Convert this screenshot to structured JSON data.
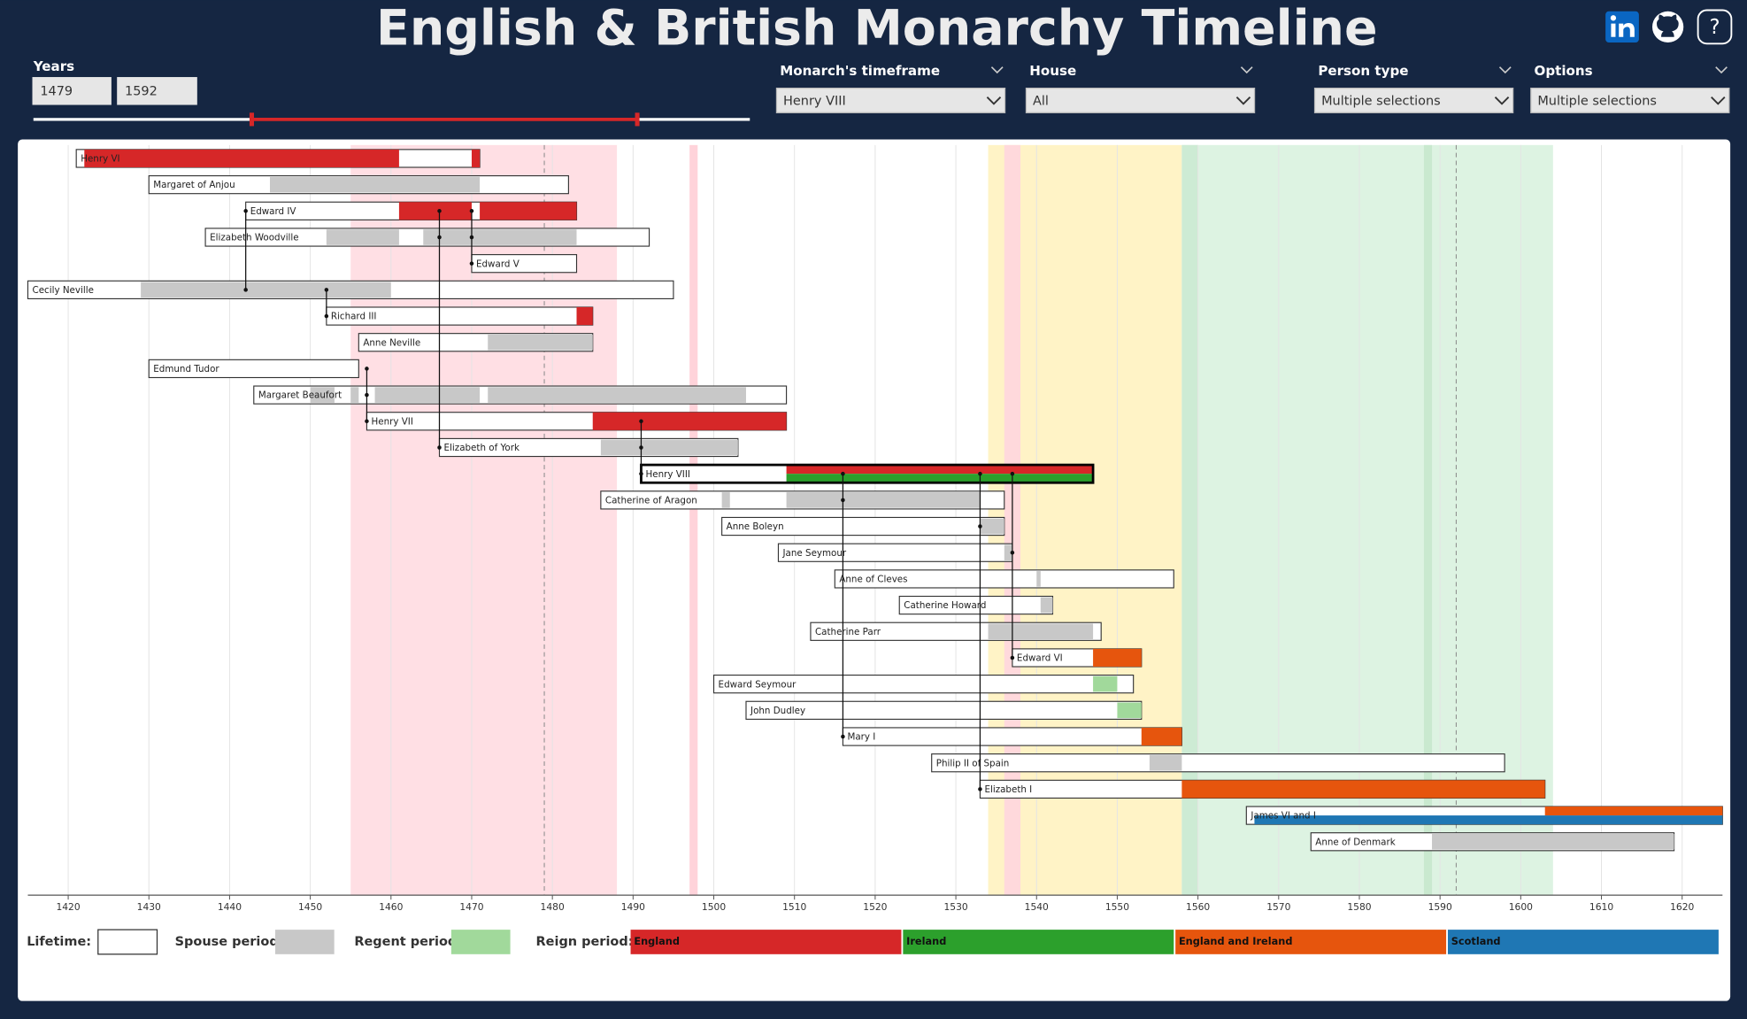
{
  "header": {
    "title": "English & British Monarchy Timeline",
    "help": "?"
  },
  "filters": {
    "years": {
      "label": "Years",
      "values": [
        1479,
        1592
      ]
    },
    "slicers": [
      {
        "label": "Monarch's timeframe",
        "value": "Henry VIII"
      },
      {
        "label": "House",
        "value": "All"
      },
      {
        "label": "Person type",
        "value": "Multiple selections"
      },
      {
        "label": "Options",
        "value": "Multiple selections"
      }
    ]
  },
  "chart_data": {
    "type": "timeline",
    "xlim": [
      1415,
      1625
    ],
    "xticks": [
      1420,
      1430,
      1440,
      1450,
      1460,
      1470,
      1480,
      1490,
      1500,
      1510,
      1520,
      1530,
      1540,
      1550,
      1560,
      1570,
      1580,
      1590,
      1600,
      1610,
      1620
    ],
    "grid": true,
    "bands": [
      {
        "start": 1455,
        "end": 1488,
        "color": "#ffdfe4"
      },
      {
        "start": 1497,
        "end": 1498,
        "color": "#ffd3da"
      },
      {
        "start": 1534,
        "end": 1558,
        "color": "#fff3c6"
      },
      {
        "start": 1536,
        "end": 1538,
        "color": "#ffd9dc"
      },
      {
        "start": 1558,
        "end": 1604,
        "color": "#ddf3e2"
      },
      {
        "start": 1558,
        "end": 1560,
        "color": "#cdebd4"
      },
      {
        "start": 1588,
        "end": 1589,
        "color": "#c9e9cf"
      }
    ],
    "people": [
      {
        "name": "Henry VI",
        "birth": 1421,
        "death": 1471,
        "spouse": [],
        "regent": [],
        "reign": [
          {
            "region": "England",
            "start": 1422,
            "end": 1461
          },
          {
            "region": "England",
            "start": 1470,
            "end": 1471
          }
        ],
        "parents": []
      },
      {
        "name": "Margaret of Anjou",
        "birth": 1430,
        "death": 1482,
        "spouse": [
          {
            "start": 1445,
            "end": 1471
          }
        ],
        "regent": [],
        "reign": [],
        "parents": []
      },
      {
        "name": "Edward IV",
        "birth": 1442,
        "death": 1483,
        "spouse": [],
        "regent": [],
        "reign": [
          {
            "region": "England",
            "start": 1461,
            "end": 1470
          },
          {
            "region": "England",
            "start": 1471,
            "end": 1483
          }
        ],
        "parents": [
          "Cecily Neville"
        ]
      },
      {
        "name": "Elizabeth Woodville",
        "birth": 1437,
        "death": 1492,
        "spouse": [
          {
            "start": 1452,
            "end": 1461
          },
          {
            "start": 1464,
            "end": 1483
          }
        ],
        "regent": [],
        "reign": [],
        "parents": []
      },
      {
        "name": "Edward V",
        "birth": 1470,
        "death": 1483,
        "spouse": [],
        "regent": [],
        "reign": [],
        "parents": [
          "Edward IV",
          "Elizabeth Woodville"
        ]
      },
      {
        "name": "Cecily Neville",
        "birth": 1415,
        "death": 1495,
        "spouse": [
          {
            "start": 1429,
            "end": 1460
          }
        ],
        "regent": [],
        "reign": [],
        "parents": []
      },
      {
        "name": "Richard III",
        "birth": 1452,
        "death": 1485,
        "spouse": [],
        "regent": [],
        "reign": [
          {
            "region": "England",
            "start": 1483,
            "end": 1485
          }
        ],
        "parents": [
          "Cecily Neville"
        ]
      },
      {
        "name": "Anne Neville",
        "birth": 1456,
        "death": 1485,
        "spouse": [
          {
            "start": 1472,
            "end": 1485
          }
        ],
        "regent": [],
        "reign": [],
        "parents": []
      },
      {
        "name": "Edmund Tudor",
        "birth": 1430,
        "death": 1456,
        "spouse": [],
        "regent": [],
        "reign": [],
        "parents": []
      },
      {
        "name": "Margaret Beaufort",
        "birth": 1443,
        "death": 1509,
        "spouse": [
          {
            "start": 1450,
            "end": 1453
          },
          {
            "start": 1455,
            "end": 1456
          },
          {
            "start": 1458,
            "end": 1471
          },
          {
            "start": 1472,
            "end": 1504
          }
        ],
        "regent": [],
        "reign": [],
        "parents": []
      },
      {
        "name": "Henry VII",
        "birth": 1457,
        "death": 1509,
        "spouse": [],
        "regent": [],
        "reign": [
          {
            "region": "England",
            "start": 1485,
            "end": 1509
          }
        ],
        "parents": [
          "Edmund Tudor",
          "Margaret Beaufort"
        ]
      },
      {
        "name": "Elizabeth of York",
        "birth": 1466,
        "death": 1503,
        "spouse": [
          {
            "start": 1486,
            "end": 1503
          }
        ],
        "regent": [],
        "reign": [],
        "parents": [
          "Edward IV",
          "Elizabeth Woodville"
        ]
      },
      {
        "name": "Henry VIII",
        "birth": 1491,
        "death": 1547,
        "spouse": [],
        "regent": [],
        "reign": [
          {
            "region": "England",
            "start": 1509,
            "end": 1547
          },
          {
            "region": "Ireland",
            "start": 1509,
            "end": 1547
          }
        ],
        "parents": [
          "Henry VII",
          "Elizabeth of York"
        ]
      },
      {
        "name": "Catherine of Aragon",
        "birth": 1486,
        "death": 1536,
        "spouse": [
          {
            "start": 1501,
            "end": 1502
          },
          {
            "start": 1509,
            "end": 1533
          }
        ],
        "regent": [],
        "reign": [],
        "parents": []
      },
      {
        "name": "Anne Boleyn",
        "birth": 1501,
        "death": 1536,
        "spouse": [
          {
            "start": 1533,
            "end": 1536
          }
        ],
        "regent": [],
        "reign": [],
        "parents": []
      },
      {
        "name": "Jane Seymour",
        "birth": 1508,
        "death": 1537,
        "spouse": [
          {
            "start": 1536,
            "end": 1537
          }
        ],
        "regent": [],
        "reign": [],
        "parents": []
      },
      {
        "name": "Anne of Cleves",
        "birth": 1515,
        "death": 1557,
        "spouse": [
          {
            "start": 1540,
            "end": 1540.5
          }
        ],
        "regent": [],
        "reign": [],
        "parents": []
      },
      {
        "name": "Catherine Howard",
        "birth": 1523,
        "death": 1542,
        "spouse": [
          {
            "start": 1540.5,
            "end": 1542
          }
        ],
        "regent": [],
        "reign": [],
        "parents": []
      },
      {
        "name": "Catherine Parr",
        "birth": 1512,
        "death": 1548,
        "spouse": [
          {
            "start": 1534,
            "end": 1547
          }
        ],
        "regent": [],
        "reign": [],
        "parents": []
      },
      {
        "name": "Edward VI",
        "birth": 1537,
        "death": 1553,
        "spouse": [],
        "regent": [],
        "reign": [
          {
            "region": "England and Ireland",
            "start": 1547,
            "end": 1553
          }
        ],
        "parents": [
          "Henry VIII",
          "Jane Seymour"
        ]
      },
      {
        "name": "Edward Seymour",
        "birth": 1500,
        "death": 1552,
        "spouse": [],
        "regent": [
          {
            "start": 1547,
            "end": 1550
          }
        ],
        "reign": [],
        "parents": []
      },
      {
        "name": "John Dudley",
        "birth": 1504,
        "death": 1553,
        "spouse": [],
        "regent": [
          {
            "start": 1550,
            "end": 1553
          }
        ],
        "reign": [],
        "parents": []
      },
      {
        "name": "Mary I",
        "birth": 1516,
        "death": 1558,
        "spouse": [],
        "regent": [],
        "reign": [
          {
            "region": "England and Ireland",
            "start": 1553,
            "end": 1558
          }
        ],
        "parents": [
          "Henry VIII",
          "Catherine of Aragon"
        ]
      },
      {
        "name": "Philip II of Spain",
        "birth": 1527,
        "death": 1598,
        "spouse": [
          {
            "start": 1554,
            "end": 1558
          }
        ],
        "regent": [],
        "reign": [],
        "parents": []
      },
      {
        "name": "Elizabeth I",
        "birth": 1533,
        "death": 1603,
        "spouse": [],
        "regent": [],
        "reign": [
          {
            "region": "England and Ireland",
            "start": 1558,
            "end": 1603
          }
        ],
        "parents": [
          "Henry VIII",
          "Anne Boleyn"
        ]
      },
      {
        "name": "James VI and I",
        "birth": 1566,
        "death": 1625,
        "spouse": [],
        "regent": [],
        "reign": [
          {
            "region": "England and Ireland",
            "start": 1603,
            "end": 1625
          },
          {
            "region": "Scotland",
            "start": 1567,
            "end": 1625
          }
        ],
        "parents": []
      },
      {
        "name": "Anne of Denmark",
        "birth": 1574,
        "death": 1619,
        "spouse": [
          {
            "start": 1589,
            "end": 1619
          }
        ],
        "regent": [],
        "reign": [],
        "parents": []
      }
    ],
    "legend": {
      "lifetime": {
        "label": "Lifetime:",
        "color": "#ffffff"
      },
      "spouse": {
        "label": "Spouse period:",
        "color": "#c8c8c8"
      },
      "regent": {
        "label": "Regent period:",
        "color": "#a1d99b"
      },
      "reign": {
        "label": "Reign period:",
        "regions": [
          {
            "name": "England",
            "color": "#d62728"
          },
          {
            "name": "Ireland",
            "color": "#2ca02c"
          },
          {
            "name": "England and Ireland",
            "color": "#e6550d"
          },
          {
            "name": "Scotland",
            "color": "#1f77b4"
          }
        ]
      }
    }
  }
}
